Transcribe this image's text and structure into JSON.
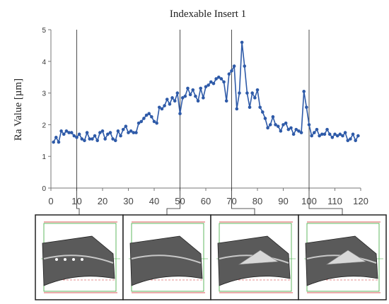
{
  "chart_data": {
    "type": "line",
    "title": "Indexable Insert 1",
    "xlabel": "",
    "ylabel": "Ra Value [µm]",
    "xlim": [
      0,
      120
    ],
    "ylim": [
      0,
      5
    ],
    "xticks": [
      "0",
      "10",
      "20",
      "30",
      "40",
      "50",
      "60",
      "70",
      "80",
      "90",
      "100",
      "110",
      "120"
    ],
    "yticks": [
      "0",
      "1",
      "2",
      "3",
      "4",
      "5"
    ],
    "grid": false,
    "legend": "none",
    "series": [
      {
        "color": "#2e5aa8",
        "x": [
          1,
          2,
          3,
          4,
          5,
          6,
          7,
          8,
          9,
          10,
          11,
          12,
          13,
          14,
          15,
          16,
          17,
          18,
          19,
          20,
          21,
          22,
          23,
          24,
          25,
          26,
          27,
          28,
          29,
          30,
          31,
          32,
          33,
          34,
          35,
          36,
          37,
          38,
          39,
          40,
          41,
          42,
          43,
          44,
          45,
          46,
          47,
          48,
          49,
          50,
          51,
          52,
          53,
          54,
          55,
          56,
          57,
          58,
          59,
          60,
          61,
          62,
          63,
          64,
          65,
          66,
          67,
          68,
          69,
          70,
          71,
          72,
          73,
          74,
          75,
          76,
          77,
          78,
          79,
          80,
          81,
          82,
          83,
          84,
          85,
          86,
          87,
          88,
          89,
          90,
          91,
          92,
          93,
          94,
          95,
          96,
          97,
          98,
          99,
          100,
          101,
          102,
          103,
          104,
          105,
          106,
          107,
          108,
          109,
          110,
          111,
          112,
          113,
          114,
          115,
          116,
          117,
          118,
          119
        ],
        "y": [
          1.45,
          1.6,
          1.45,
          1.8,
          1.7,
          1.8,
          1.75,
          1.75,
          1.65,
          1.6,
          1.7,
          1.55,
          1.5,
          1.75,
          1.55,
          1.55,
          1.65,
          1.5,
          1.75,
          1.8,
          1.55,
          1.7,
          1.75,
          1.55,
          1.5,
          1.8,
          1.65,
          1.85,
          1.95,
          1.75,
          1.8,
          1.75,
          1.75,
          2.05,
          2.1,
          2.2,
          2.3,
          2.35,
          2.25,
          2.1,
          2.05,
          2.55,
          2.5,
          2.6,
          2.8,
          2.65,
          2.85,
          2.75,
          3.0,
          2.35,
          2.85,
          2.9,
          3.15,
          2.95,
          3.1,
          2.9,
          2.75,
          3.15,
          2.85,
          3.2,
          3.25,
          3.35,
          3.3,
          3.45,
          3.5,
          3.45,
          3.35,
          2.75,
          3.6,
          3.7,
          3.85,
          2.5,
          3.0,
          4.6,
          3.85,
          3.0,
          2.55,
          3.0,
          2.85,
          3.1,
          2.55,
          2.4,
          2.2,
          1.9,
          2.0,
          2.25,
          2.0,
          1.95,
          1.8,
          2.0,
          2.05,
          1.85,
          1.9,
          1.7,
          1.85,
          1.8,
          1.75,
          3.05,
          2.55,
          2.0,
          1.65,
          1.75,
          1.85,
          1.65,
          1.7,
          1.7,
          1.85,
          1.7,
          1.6,
          1.7,
          1.65,
          1.7,
          1.65,
          1.75,
          1.5,
          1.55,
          1.7,
          1.5,
          1.65
        ]
      }
    ]
  },
  "callouts": [
    {
      "label_x": 10
    },
    {
      "label_x": 50
    },
    {
      "label_x": 70
    },
    {
      "label_x": 100
    }
  ]
}
